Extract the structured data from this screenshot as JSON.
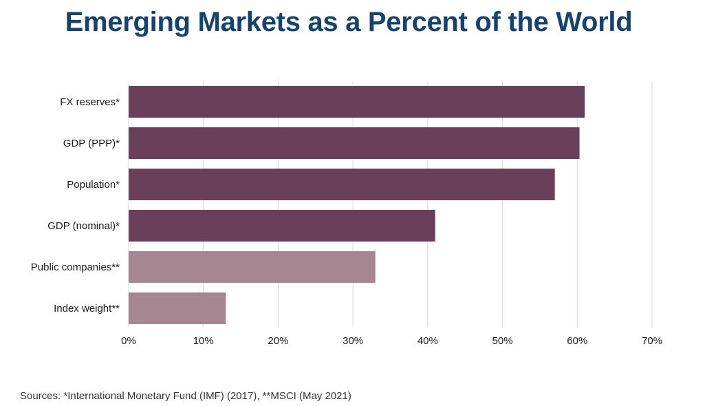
{
  "title": "Emerging Markets as a Percent of the World",
  "source": "Sources: *International Monetary Fund (IMF) (2017), **MSCI (May 2021)",
  "colors": {
    "title": "#17426b",
    "dark_bar": "#693f5a",
    "light_bar": "#a68791",
    "grid": "#d9d9d9",
    "text": "#1a1a1a"
  },
  "chart_data": {
    "type": "bar",
    "orientation": "horizontal",
    "categories": [
      "FX reserves*",
      "GDP (PPP)*",
      "Population*",
      "GDP (nominal)*",
      "Public companies**",
      "Index weight**"
    ],
    "values": [
      61,
      60.3,
      57,
      41,
      33,
      13
    ],
    "bar_colors": [
      "#693f5a",
      "#693f5a",
      "#693f5a",
      "#693f5a",
      "#a68791",
      "#a68791"
    ],
    "xlim": [
      0,
      70
    ],
    "xticks": [
      0,
      10,
      20,
      30,
      40,
      50,
      60,
      70
    ],
    "xtick_labels": [
      "0%",
      "10%",
      "20%",
      "30%",
      "40%",
      "50%",
      "60%",
      "70%"
    ],
    "grid": true,
    "xlabel": "",
    "ylabel": ""
  }
}
